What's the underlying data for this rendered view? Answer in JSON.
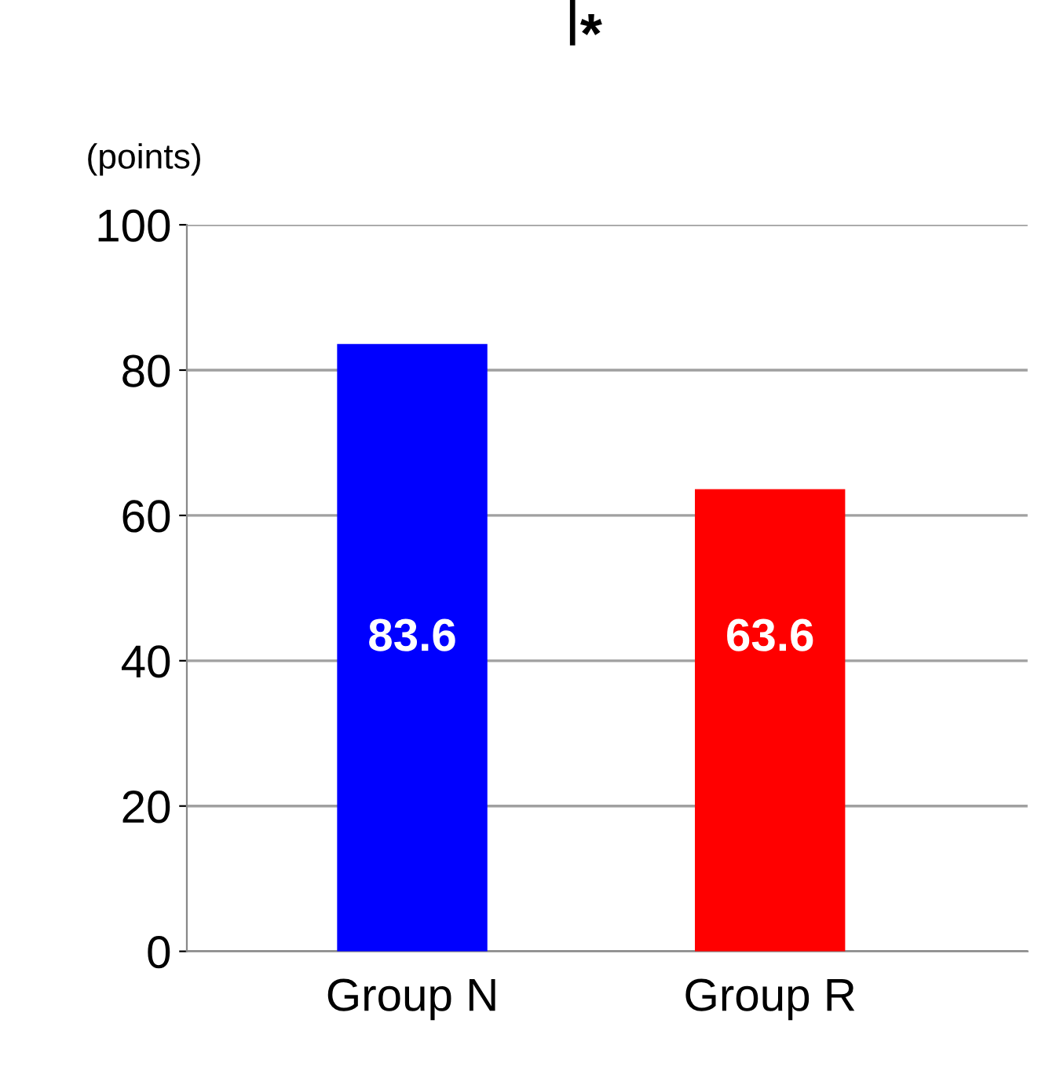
{
  "chart_data": {
    "type": "bar",
    "ylabel": "(points)",
    "categories": [
      "Group N",
      "Group R"
    ],
    "values": [
      83.6,
      63.6
    ],
    "colors": [
      "#0000ff",
      "#ff0000"
    ],
    "ylim": [
      0,
      100
    ],
    "yticks": [
      0,
      20,
      40,
      60,
      80,
      100
    ],
    "grid": "y",
    "data_labels": true,
    "annotations": [
      "*"
    ]
  }
}
